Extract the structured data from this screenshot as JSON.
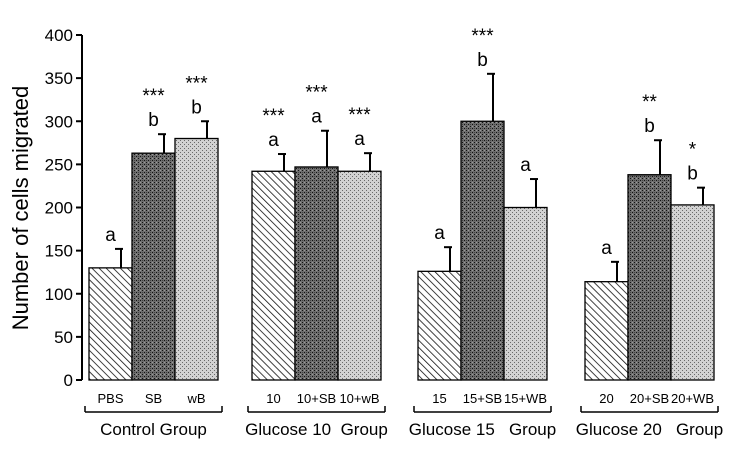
{
  "chart_data": {
    "type": "bar",
    "ylabel": "Number of cells migrated",
    "ylim": [
      0,
      400
    ],
    "yticks": [
      "0",
      "50",
      "100",
      "150",
      "200",
      "250",
      "300",
      "350",
      "400"
    ],
    "grid": false,
    "groups": [
      {
        "label": "Control Group",
        "bars": [
          {
            "label": "PBS",
            "value": 130,
            "error": 22,
            "letter": "a",
            "stars": "",
            "pattern": "diag"
          },
          {
            "label": "SB",
            "value": 263,
            "error": 22,
            "letter": "b",
            "stars": "***",
            "pattern": "dark"
          },
          {
            "label": "wB",
            "value": 280,
            "error": 20,
            "letter": "b",
            "stars": "***",
            "pattern": "light"
          }
        ]
      },
      {
        "label": "Glucose 10  Group",
        "bars": [
          {
            "label": "10",
            "value": 242,
            "error": 20,
            "letter": "a",
            "stars": "***",
            "pattern": "diag"
          },
          {
            "label": "10+SB",
            "value": 247,
            "error": 42,
            "letter": "a",
            "stars": "***",
            "pattern": "dark"
          },
          {
            "label": "10+wB",
            "value": 242,
            "error": 21,
            "letter": "a",
            "stars": "***",
            "pattern": "light"
          }
        ]
      },
      {
        "label": "Glucose 15   Group",
        "bars": [
          {
            "label": "15",
            "value": 126,
            "error": 28,
            "letter": "a",
            "stars": "",
            "pattern": "diag"
          },
          {
            "label": "15+SB",
            "value": 300,
            "error": 55,
            "letter": "b",
            "stars": "***",
            "pattern": "dark"
          },
          {
            "label": "15+WB",
            "value": 200,
            "error": 33,
            "letter": "a",
            "stars": "",
            "pattern": "light"
          }
        ]
      },
      {
        "label": "Glucose 20   Group",
        "bars": [
          {
            "label": "20",
            "value": 114,
            "error": 23,
            "letter": "a",
            "stars": "",
            "pattern": "diag"
          },
          {
            "label": "20+SB",
            "value": 238,
            "error": 40,
            "letter": "b",
            "stars": "**",
            "pattern": "dark"
          },
          {
            "label": "20+WB",
            "value": 203,
            "error": 20,
            "letter": "b",
            "stars": "*",
            "pattern": "light"
          }
        ]
      }
    ]
  }
}
